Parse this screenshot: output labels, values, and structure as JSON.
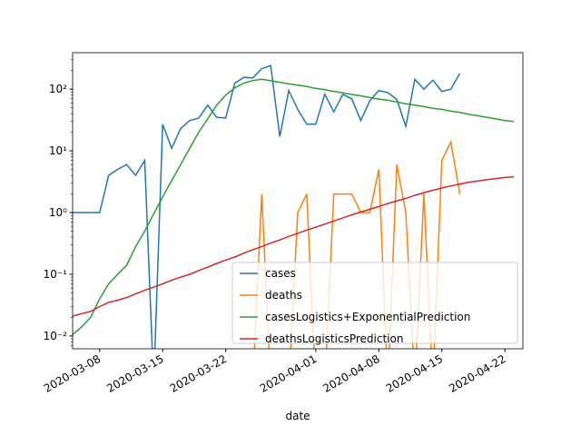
{
  "chart_data": {
    "type": "line",
    "xlabel": "date",
    "x": [
      "2020-03-05",
      "2020-03-06",
      "2020-03-07",
      "2020-03-08",
      "2020-03-09",
      "2020-03-10",
      "2020-03-11",
      "2020-03-12",
      "2020-03-13",
      "2020-03-14",
      "2020-03-15",
      "2020-03-16",
      "2020-03-17",
      "2020-03-18",
      "2020-03-19",
      "2020-03-20",
      "2020-03-21",
      "2020-03-22",
      "2020-03-23",
      "2020-03-24",
      "2020-03-25",
      "2020-03-26",
      "2020-03-27",
      "2020-03-28",
      "2020-03-29",
      "2020-03-30",
      "2020-03-31",
      "2020-04-01",
      "2020-04-02",
      "2020-04-03",
      "2020-04-04",
      "2020-04-05",
      "2020-04-06",
      "2020-04-07",
      "2020-04-08",
      "2020-04-09",
      "2020-04-10",
      "2020-04-11",
      "2020-04-12",
      "2020-04-13",
      "2020-04-14",
      "2020-04-15",
      "2020-04-16",
      "2020-04-17",
      "2020-04-18",
      "2020-04-19",
      "2020-04-20",
      "2020-04-21",
      "2020-04-22",
      "2020-04-23"
    ],
    "series": [
      {
        "name": "cases",
        "color": "#1f77b4",
        "values": [
          1,
          1,
          1,
          1,
          4,
          5,
          6,
          4,
          7,
          0,
          27,
          11,
          23,
          31,
          34,
          55,
          35,
          34,
          125,
          155,
          152,
          215,
          240,
          17,
          95,
          47,
          27,
          27,
          83,
          43,
          82,
          70,
          31,
          65,
          95,
          88,
          68,
          25,
          145,
          100,
          140,
          92,
          100,
          180,
          null,
          null,
          null,
          null,
          null,
          null
        ]
      },
      {
        "name": "deaths",
        "color": "#ff7f0e",
        "values": [
          0,
          0,
          0,
          0,
          0,
          0,
          0,
          0,
          0,
          0,
          0,
          0,
          0,
          0,
          0,
          0,
          0,
          0,
          0,
          0,
          0,
          2,
          0,
          0,
          0,
          1,
          2,
          0,
          0,
          2,
          2,
          2,
          1,
          1,
          5,
          0,
          6,
          1,
          0,
          2,
          0,
          7,
          14,
          2,
          null,
          null,
          null,
          null,
          null,
          null
        ]
      },
      {
        "name": "casesLogistics+ExponentialPrediction",
        "color": "#2ca02c",
        "values": [
          0.0105,
          0.014,
          0.02,
          0.04,
          0.07,
          0.1,
          0.14,
          0.28,
          0.5,
          0.95,
          1.8,
          3.3,
          6,
          11,
          20,
          33,
          55,
          80,
          105,
          125,
          138,
          145,
          137,
          129,
          122,
          116,
          110,
          103,
          98,
          92,
          87,
          82,
          78,
          73,
          69,
          66,
          62,
          58,
          55,
          52,
          49,
          47,
          44,
          42,
          39,
          37,
          35,
          33,
          31,
          30
        ]
      },
      {
        "name": "deathsLogisticsPrediction",
        "color": "#d62728",
        "values": [
          0.021,
          0.023,
          0.025,
          0.03,
          0.035,
          0.038,
          0.042,
          0.048,
          0.055,
          0.062,
          0.07,
          0.08,
          0.09,
          0.1,
          0.115,
          0.13,
          0.15,
          0.17,
          0.19,
          0.22,
          0.25,
          0.28,
          0.32,
          0.36,
          0.41,
          0.46,
          0.52,
          0.58,
          0.65,
          0.73,
          0.82,
          0.92,
          1.02,
          1.13,
          1.25,
          1.4,
          1.55,
          1.7,
          1.9,
          2.1,
          2.3,
          2.5,
          2.7,
          2.9,
          3.1,
          3.25,
          3.4,
          3.55,
          3.7,
          3.8
        ]
      }
    ],
    "xlim": [
      "2020-03-05",
      "2020-04-24"
    ],
    "xticks": [
      "2020-03-08",
      "2020-03-15",
      "2020-03-22",
      "2020-04-01",
      "2020-04-08",
      "2020-04-15",
      "2020-04-22"
    ],
    "ylim": [
      0.0062,
      390
    ],
    "yscale": "log",
    "yticks": [
      {
        "value": 0.01,
        "label": "10⁻²"
      },
      {
        "value": 0.1,
        "label": "10⁻¹"
      },
      {
        "value": 1,
        "label": "10⁰"
      },
      {
        "value": 10,
        "label": "10¹"
      },
      {
        "value": 100,
        "label": "10²"
      }
    ],
    "legend": "lower right"
  }
}
